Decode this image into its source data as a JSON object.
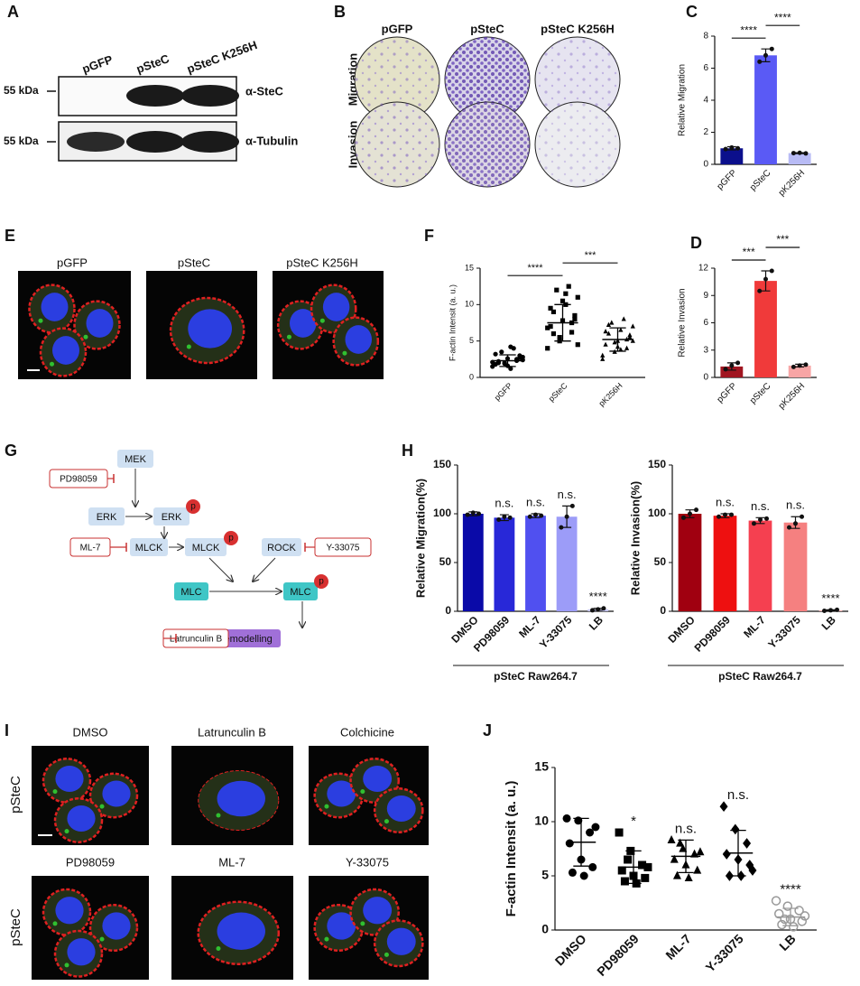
{
  "panel_letters": [
    "A",
    "B",
    "C",
    "D",
    "E",
    "F",
    "G",
    "H",
    "I",
    "J"
  ],
  "blot": {
    "lanes": [
      "pGFP",
      "pSteC",
      "pSteC K256H"
    ],
    "rows": [
      {
        "size": "55 kDa",
        "antibody": "α-SteC"
      },
      {
        "size": "55 kDa",
        "antibody": "α-Tubulin"
      }
    ]
  },
  "transwell": {
    "columns": [
      "pGFP",
      "pSteC",
      "pSteC K256H"
    ],
    "rows": [
      "Migration",
      "Invasion"
    ]
  },
  "confocal_e": {
    "columns": [
      "pGFP",
      "pSteC",
      "pSteC K256H"
    ]
  },
  "pathway": {
    "nodes": [
      "MEK",
      "ERK",
      "ERK",
      "MLCK",
      "MLCK",
      "ROCK",
      "MLC",
      "MLC",
      "F-actin remodelling"
    ],
    "phospho": [
      "p",
      "p",
      "p"
    ],
    "inhibitors": [
      "PD98059",
      "ML-7",
      "Y-33075",
      "Latrunculin B"
    ]
  },
  "confocal_i": {
    "columns": [
      "DMSO",
      "Latrunculin B",
      "Colchicine",
      "PD98059",
      "ML-7",
      "Y-33075"
    ],
    "row_labels": [
      "pSteC",
      "pSteC"
    ]
  },
  "chart_data": [
    {
      "type": "bar",
      "ylabel": "Relative Migration",
      "categories": [
        "pGFP",
        "pSteC",
        "pK256H"
      ],
      "values": [
        1.0,
        6.8,
        0.7
      ],
      "errors": [
        0.1,
        0.4,
        0.03
      ],
      "points": [
        [
          0.95,
          1.05,
          1.0
        ],
        [
          6.4,
          6.8,
          7.2
        ],
        [
          0.7,
          0.72,
          0.68
        ]
      ],
      "colors": [
        "#0b0f8c",
        "#5a5af5",
        "#b8bbf5"
      ],
      "ylim": [
        0,
        8
      ],
      "yticks": [
        0,
        2,
        4,
        6,
        8
      ],
      "brackets": [
        {
          "between": [
            "pGFP",
            "pSteC"
          ],
          "text": "****"
        },
        {
          "between": [
            "pSteC",
            "pK256H"
          ],
          "text": "****"
        }
      ]
    },
    {
      "type": "bar",
      "ylabel": "Relative Invasion",
      "categories": [
        "pGFP",
        "pSteC",
        "pK256H"
      ],
      "values": [
        1.2,
        10.6,
        1.3
      ],
      "errors": [
        0.4,
        1.1,
        0.15
      ],
      "points": [
        [
          0.9,
          1.3,
          1.6
        ],
        [
          9.5,
          10.8,
          11.7
        ],
        [
          1.15,
          1.3,
          1.4
        ]
      ],
      "colors": [
        "#a01520",
        "#f03a3a",
        "#f7a5a5"
      ],
      "ylim": [
        0,
        12
      ],
      "yticks": [
        0,
        3,
        6,
        9,
        12
      ],
      "brackets": [
        {
          "between": [
            "pGFP",
            "pSteC"
          ],
          "text": "***"
        },
        {
          "between": [
            "pSteC",
            "pK256H"
          ],
          "text": "***"
        }
      ]
    },
    {
      "type": "dot",
      "ylabel": "F-actin Intensit (a. u.)",
      "categories": [
        "pGFP",
        "pSteC",
        "pK256H"
      ],
      "means": [
        2.3,
        7.5,
        5.2
      ],
      "sd": [
        0.8,
        2.5,
        1.6
      ],
      "points": [
        [
          1.5,
          2.0,
          2.3,
          1.8,
          2.6,
          3.0,
          2.2,
          1.2,
          2.8,
          3.5,
          4.0,
          2.1,
          1.9,
          2.5,
          3.2,
          1.6,
          2.7,
          2.0,
          4.2,
          2.4
        ],
        [
          4.0,
          5.5,
          6.2,
          7.0,
          7.8,
          8.5,
          9.0,
          10.0,
          11.0,
          12.0,
          12.5,
          6.8,
          5.0,
          7.5,
          9.5,
          10.5,
          8.0,
          6.0,
          11.5,
          4.5
        ],
        [
          2.5,
          3.5,
          4.0,
          4.5,
          5.0,
          5.5,
          6.0,
          6.5,
          7.0,
          7.5,
          8.0,
          3.0,
          4.8,
          5.2,
          6.3,
          4.2,
          5.8,
          7.2,
          3.8,
          5.0
        ]
      ],
      "markers": [
        "circle",
        "square",
        "triangle"
      ],
      "colors": [
        "#000000",
        "#000000",
        "#000000"
      ],
      "ylim": [
        0,
        15
      ],
      "yticks": [
        0,
        5,
        10,
        15
      ],
      "brackets": [
        {
          "between": [
            "pGFP",
            "pSteC"
          ],
          "text": "****"
        },
        {
          "between": [
            "pSteC",
            "pK256H"
          ],
          "text": "***"
        }
      ]
    },
    {
      "type": "bar",
      "ylabel": "Relative Migration(%)",
      "xlabel": "pSteC Raw264.7",
      "categories": [
        "DMSO",
        "PD98059",
        "ML-7",
        "Y-33075",
        "LB"
      ],
      "values": [
        100,
        96,
        98,
        97,
        2
      ],
      "errors": [
        2,
        3,
        2,
        11,
        1
      ],
      "points": [
        [
          99,
          101,
          100
        ],
        [
          94,
          97,
          96
        ],
        [
          97,
          99,
          98
        ],
        [
          86,
          97,
          108
        ],
        [
          1,
          2,
          3
        ]
      ],
      "colors": [
        "#0a0aa8",
        "#2828d8",
        "#5050f0",
        "#9c9cf8",
        "#c8c8fa"
      ],
      "ylim": [
        0,
        150
      ],
      "yticks": [
        0,
        50,
        100,
        150
      ],
      "marks": [
        {
          "category": "PD98059",
          "text": "n.s."
        },
        {
          "category": "ML-7",
          "text": "n.s."
        },
        {
          "category": "Y-33075",
          "text": "n.s."
        },
        {
          "category": "LB",
          "text": "****"
        }
      ]
    },
    {
      "type": "bar",
      "ylabel": "Relative Invasion(%)",
      "xlabel": "pSteC Raw264.7",
      "categories": [
        "DMSO",
        "PD98059",
        "ML-7",
        "Y-33075",
        "LB"
      ],
      "values": [
        100,
        98,
        93,
        91,
        1
      ],
      "errors": [
        4,
        2,
        3,
        6,
        0.5
      ],
      "points": [
        [
          96,
          100,
          104
        ],
        [
          97,
          99,
          99
        ],
        [
          90,
          94,
          95
        ],
        [
          86,
          90,
          97
        ],
        [
          0.5,
          1,
          1.5
        ]
      ],
      "colors": [
        "#a00010",
        "#ee1010",
        "#f54050",
        "#f58080",
        "#f8b0b0"
      ],
      "ylim": [
        0,
        150
      ],
      "yticks": [
        0,
        50,
        100,
        150
      ],
      "marks": [
        {
          "category": "PD98059",
          "text": "n.s."
        },
        {
          "category": "ML-7",
          "text": "n.s."
        },
        {
          "category": "Y-33075",
          "text": "n.s."
        },
        {
          "category": "LB",
          "text": "****"
        }
      ]
    },
    {
      "type": "dot",
      "ylabel": "F-actin Intensit (a. u.)",
      "categories": [
        "DMSO",
        "PD98059",
        "ML-7",
        "Y-33075",
        "LB"
      ],
      "means": [
        8.1,
        5.8,
        6.8,
        7.1,
        1.2
      ],
      "sd": [
        2.2,
        1.5,
        1.5,
        2.1,
        0.8
      ],
      "points": [
        [
          10.3,
          10.1,
          9.0,
          8.0,
          6.5,
          5.8,
          5.3,
          5.0,
          9.5
        ],
        [
          9.0,
          7.3,
          6.0,
          5.5,
          5.0,
          4.8,
          4.5,
          4.3,
          5.8,
          6.5
        ],
        [
          8.3,
          7.5,
          7.0,
          6.5,
          6.0,
          5.5,
          5.0,
          4.8,
          7.2,
          8.0
        ],
        [
          11.4,
          9.3,
          8.0,
          7.0,
          6.5,
          6.0,
          5.0,
          5.0,
          5.5
        ],
        [
          2.7,
          2.2,
          1.8,
          1.5,
          1.0,
          0.8,
          0.5,
          0.3,
          1.3,
          1.0
        ]
      ],
      "markers": [
        "circle",
        "square",
        "triangle",
        "diamond",
        "circle-open"
      ],
      "colors": [
        "#000000",
        "#000000",
        "#000000",
        "#000000",
        "#999999"
      ],
      "ylim": [
        0,
        15
      ],
      "yticks": [
        0,
        5,
        10,
        15
      ],
      "marks": [
        {
          "category": "PD98059",
          "text": "*"
        },
        {
          "category": "ML-7",
          "text": "n.s."
        },
        {
          "category": "Y-33075",
          "text": "n.s."
        },
        {
          "category": "LB",
          "text": "****"
        }
      ]
    }
  ]
}
